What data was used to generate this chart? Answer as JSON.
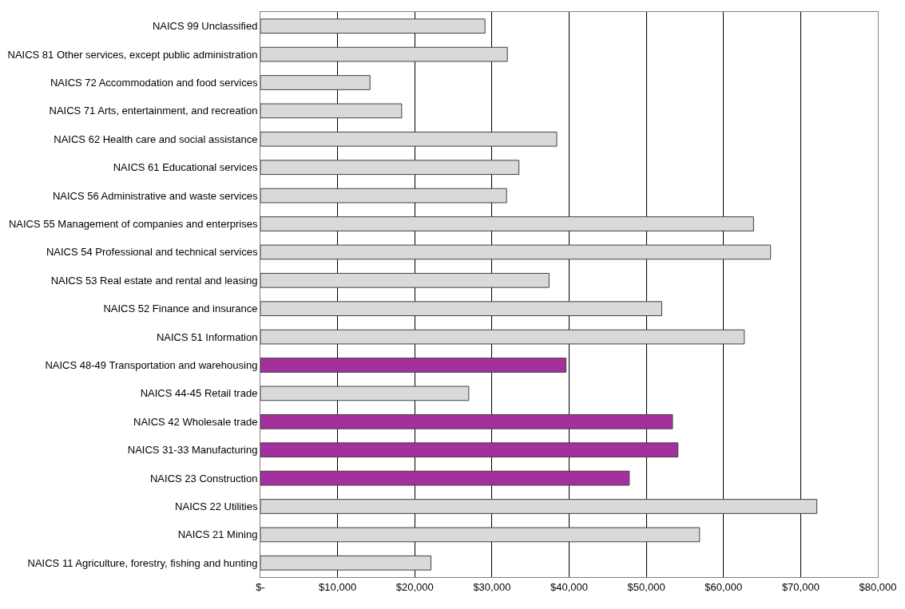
{
  "chart_data": {
    "type": "bar",
    "orientation": "horizontal",
    "categories": [
      "NAICS 99 Unclassified",
      "NAICS 81 Other services, except public administration",
      "NAICS 72 Accommodation and food services",
      "NAICS 71 Arts, entertainment, and recreation",
      "NAICS 62 Health care and social assistance",
      "NAICS 61 Educational services",
      "NAICS 56 Administrative and waste services",
      "NAICS 55 Management of companies and enterprises",
      "NAICS 54 Professional and technical services",
      "NAICS 53 Real estate and rental and leasing",
      "NAICS 52 Finance and insurance",
      "NAICS 51 Information",
      "NAICS 48-49 Transportation and warehousing",
      "NAICS 44-45 Retail trade",
      "NAICS 42 Wholesale trade",
      "NAICS 31-33 Manufacturing",
      "NAICS 23 Construction",
      "NAICS 22 Utilities",
      "NAICS 21 Mining",
      "NAICS 11 Agriculture, forestry, fishing and hunting"
    ],
    "values": [
      29100,
      32000,
      14200,
      18300,
      38400,
      33500,
      31900,
      63900,
      66100,
      37400,
      52000,
      62700,
      39600,
      27000,
      53400,
      54100,
      47800,
      72100,
      56900,
      22100
    ],
    "colors": [
      "#d9d9d9",
      "#d9d9d9",
      "#d9d9d9",
      "#d9d9d9",
      "#d9d9d9",
      "#d9d9d9",
      "#d9d9d9",
      "#d9d9d9",
      "#d9d9d9",
      "#d9d9d9",
      "#d9d9d9",
      "#d9d9d9",
      "#a3309c",
      "#d9d9d9",
      "#a3309c",
      "#a3309c",
      "#a3309c",
      "#d9d9d9",
      "#d9d9d9",
      "#d9d9d9"
    ],
    "xlim": [
      0,
      80000
    ],
    "xticks": [
      {
        "value": 0,
        "label": "$-"
      },
      {
        "value": 10000,
        "label": "$10,000"
      },
      {
        "value": 20000,
        "label": "$20,000"
      },
      {
        "value": 30000,
        "label": "$30,000"
      },
      {
        "value": 40000,
        "label": "$40,000"
      },
      {
        "value": 50000,
        "label": "$50,000"
      },
      {
        "value": 60000,
        "label": "$60,000"
      },
      {
        "value": 70000,
        "label": "$70,000"
      },
      {
        "value": 80000,
        "label": "$80,000"
      }
    ],
    "grid": "x"
  }
}
